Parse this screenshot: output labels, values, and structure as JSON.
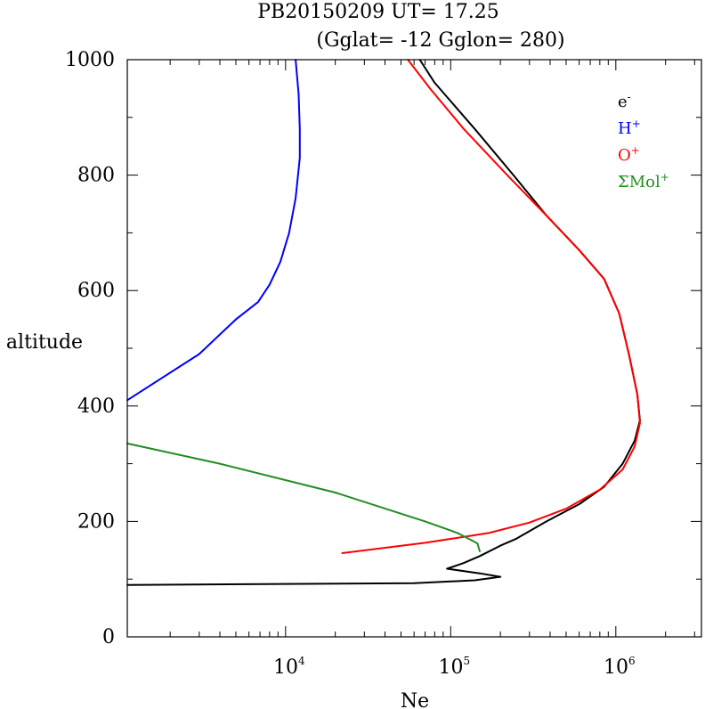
{
  "chart_data": {
    "type": "line",
    "title": "PB20150209   UT=  17.25",
    "subtitle": "(Gglat= -12   Gglon=  280)",
    "xlabel": "Ne",
    "ylabel": "altitude",
    "xscale": "log",
    "xlim": [
      1100,
      3300000
    ],
    "ylim": [
      0,
      1000
    ],
    "x_major_ticks": [
      {
        "value": 10000,
        "base": "10",
        "exp": "4"
      },
      {
        "value": 100000,
        "base": "10",
        "exp": "5"
      },
      {
        "value": 1000000,
        "base": "10",
        "exp": "6"
      }
    ],
    "y_ticks": [
      0,
      200,
      400,
      600,
      800,
      1000
    ],
    "grid": false,
    "legend_position": "top-right",
    "series": [
      {
        "name": "e",
        "name_sup": "-",
        "color": "#000000",
        "points": [
          [
            1100,
            90
          ],
          [
            60000,
            93
          ],
          [
            140000,
            98
          ],
          [
            200000,
            104
          ],
          [
            150000,
            110
          ],
          [
            95000,
            118
          ],
          [
            120000,
            128
          ],
          [
            150000,
            140
          ],
          [
            200000,
            158
          ],
          [
            250000,
            170
          ],
          [
            380000,
            200
          ],
          [
            600000,
            230
          ],
          [
            850000,
            260
          ],
          [
            1100000,
            300
          ],
          [
            1300000,
            340
          ],
          [
            1400000,
            375
          ],
          [
            1350000,
            420
          ],
          [
            1200000,
            490
          ],
          [
            1050000,
            560
          ],
          [
            850000,
            620
          ],
          [
            600000,
            670
          ],
          [
            380000,
            730
          ],
          [
            240000,
            800
          ],
          [
            140000,
            880
          ],
          [
            80000,
            960
          ],
          [
            65000,
            1000
          ]
        ]
      },
      {
        "name": "H",
        "name_sup": "+",
        "color": "#0000ff",
        "points": [
          [
            1100,
            410
          ],
          [
            3000,
            490
          ],
          [
            5000,
            550
          ],
          [
            6800,
            580
          ],
          [
            8000,
            610
          ],
          [
            9300,
            650
          ],
          [
            10500,
            700
          ],
          [
            11500,
            760
          ],
          [
            12200,
            830
          ],
          [
            12200,
            880
          ],
          [
            12000,
            940
          ],
          [
            11500,
            1000
          ]
        ]
      },
      {
        "name": "O",
        "name_sup": "+",
        "color": "#ff0000",
        "points": [
          [
            22000,
            145
          ],
          [
            70000,
            163
          ],
          [
            170000,
            180
          ],
          [
            300000,
            198
          ],
          [
            500000,
            222
          ],
          [
            800000,
            255
          ],
          [
            1100000,
            290
          ],
          [
            1300000,
            330
          ],
          [
            1400000,
            370
          ],
          [
            1350000,
            420
          ],
          [
            1200000,
            490
          ],
          [
            1050000,
            560
          ],
          [
            850000,
            620
          ],
          [
            600000,
            670
          ],
          [
            380000,
            730
          ],
          [
            220000,
            800
          ],
          [
            120000,
            880
          ],
          [
            75000,
            950
          ],
          [
            55000,
            1000
          ]
        ]
      },
      {
        "name": "ΣMol",
        "name_sup": "+",
        "color": "#228b22",
        "points": [
          [
            1100,
            335
          ],
          [
            4000,
            300
          ],
          [
            20000,
            250
          ],
          [
            70000,
            200
          ],
          [
            110000,
            180
          ],
          [
            145000,
            162
          ],
          [
            150000,
            148
          ]
        ]
      }
    ]
  }
}
